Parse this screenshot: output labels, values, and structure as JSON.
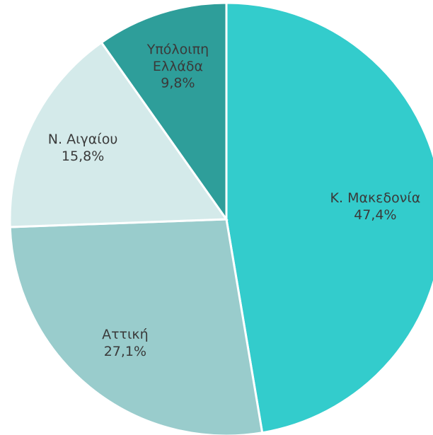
{
  "chart_data": {
    "type": "pie",
    "categories": [
      "Κ. Μακεδονία",
      "Αττική",
      "Ν. Αιγαίου",
      "Υπόλοιπη Ελλάδα"
    ],
    "values": [
      47.4,
      27.1,
      15.8,
      9.8
    ],
    "value_labels": [
      "47,4%",
      "27,1%",
      "15,8%",
      "9,8%"
    ],
    "colors": [
      "#33cccc",
      "#99cccc",
      "#d4eaea",
      "#2e9e9a"
    ]
  }
}
